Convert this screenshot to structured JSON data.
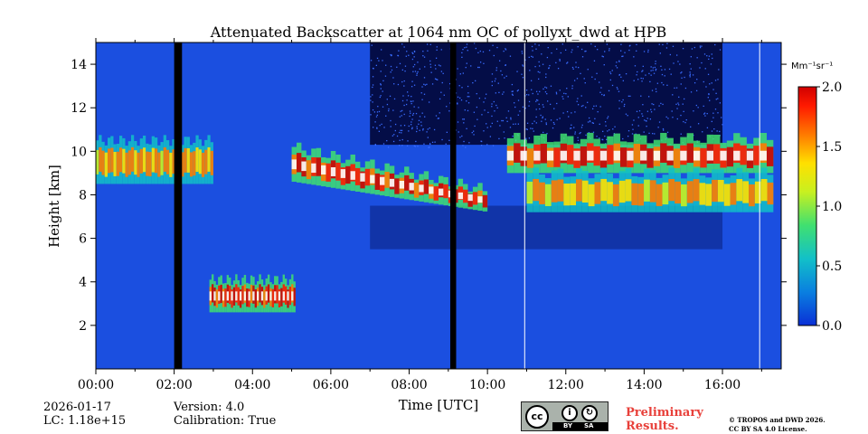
{
  "chart_data": {
    "type": "heatmap",
    "title": "Attenuated Backscatter at 1064 nm OC of pollyxt_dwd at HPB",
    "xlabel": "Time [UTC]",
    "ylabel": "Height [km]",
    "xlim": [
      0,
      17.5
    ],
    "ylim": [
      0,
      15
    ],
    "x_ticks": [
      {
        "value": 0,
        "label": "00:00"
      },
      {
        "value": 2,
        "label": "02:00"
      },
      {
        "value": 4,
        "label": "04:00"
      },
      {
        "value": 6,
        "label": "06:00"
      },
      {
        "value": 8,
        "label": "08:00"
      },
      {
        "value": 10,
        "label": "10:00"
      },
      {
        "value": 12,
        "label": "12:00"
      },
      {
        "value": 14,
        "label": "14:00"
      },
      {
        "value": 16,
        "label": "16:00"
      }
    ],
    "y_ticks": [
      {
        "value": 2,
        "label": "2"
      },
      {
        "value": 4,
        "label": "4"
      },
      {
        "value": 6,
        "label": "6"
      },
      {
        "value": 8,
        "label": "8"
      },
      {
        "value": 10,
        "label": "10"
      },
      {
        "value": 12,
        "label": "12"
      },
      {
        "value": 14,
        "label": "14"
      }
    ],
    "colorbar": {
      "unit": "Mm⁻¹sr⁻¹",
      "range": [
        0,
        2
      ],
      "ticks": [
        {
          "value": 0,
          "label": "0.0"
        },
        {
          "value": 0.5,
          "label": "0.5"
        },
        {
          "value": 1,
          "label": "1.0"
        },
        {
          "value": 1.5,
          "label": "1.5"
        },
        {
          "value": 2,
          "label": "2.0"
        }
      ],
      "colors": [
        "#0a2fd6",
        "#0a7fe0",
        "#12c0c8",
        "#40e070",
        "#c8f020",
        "#ffe000",
        "#ff7a00",
        "#ff1a00",
        "#d00000"
      ]
    },
    "background_color": "#1b4fe0",
    "no_data_periods": [
      [
        2.0,
        2.2
      ],
      [
        9.05,
        9.2
      ]
    ],
    "calibration_lines": [
      10.95,
      16.95
    ],
    "cloud_layers": [
      {
        "name": "early-cirrus",
        "t0": 0,
        "t1": 3.0,
        "base_km": 8.5,
        "top_km": 10.5,
        "max_value": 1.6
      },
      {
        "name": "main-cirrus-descending",
        "t0": 5.0,
        "t1": 10.0,
        "base_km_start": 8.6,
        "base_km_end": 7.2,
        "top_km_start": 10.2,
        "top_km_end": 8.2,
        "max_value": 2.0
      },
      {
        "name": "upper-cirrus",
        "t0": 10.5,
        "t1": 17.3,
        "base_km": 9.0,
        "top_km": 10.6,
        "max_value": 2.0
      },
      {
        "name": "lower-cirrus-filaments",
        "t0": 11.0,
        "t1": 17.3,
        "base_km": 7.2,
        "top_km": 9.0,
        "max_value": 1.5
      },
      {
        "name": "mid-level-cloud",
        "t0": 2.9,
        "t1": 5.1,
        "base_km": 2.6,
        "top_km": 4.1,
        "max_value": 2.0
      }
    ],
    "noisy_daytime": [
      7.0,
      16.0
    ]
  },
  "footer": {
    "date": "2026-01-17",
    "lc": "LC: 1.18e+15",
    "version": "Version: 4.0",
    "calibration": "Calibration: True",
    "license_badge": {
      "by": "BY",
      "sa": "SA"
    },
    "preliminary_line1": "Preliminary",
    "preliminary_line2": "Results.",
    "copyright_line1": "© TROPOS and DWD 2026.",
    "copyright_line2": "CC BY SA 4.0 License."
  }
}
